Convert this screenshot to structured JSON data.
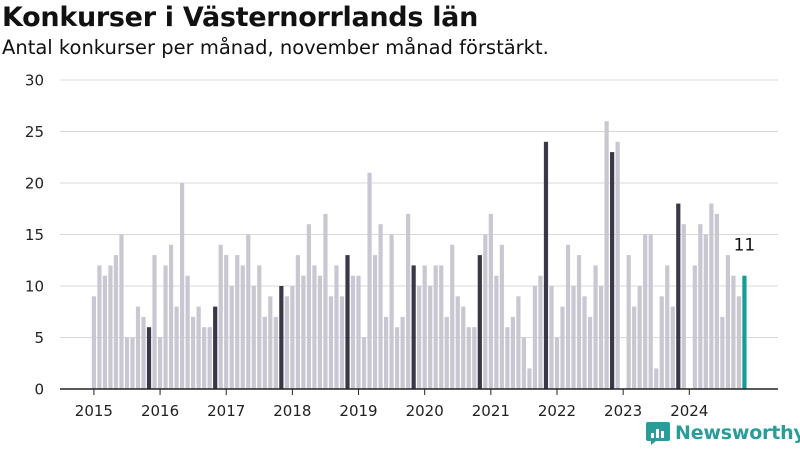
{
  "header": {
    "title": "Konkurser i Västernorrlands län",
    "subtitle": "Antal konkurser per månad, november månad förstärkt."
  },
  "brand": {
    "name": "Newsworthy",
    "color": "#2a9d9a"
  },
  "colors": {
    "bar": "#c8c7d2",
    "highlight": "#3a3848",
    "latest": "#139e96",
    "axis": "#222222",
    "grid": "#d8d8d8"
  },
  "chart_data": {
    "type": "bar",
    "title": "Konkurser i Västernorrlands län",
    "subtitle": "Antal konkurser per månad, november månad förstärkt.",
    "xlabel": "",
    "ylabel": "",
    "ylim": [
      0,
      30
    ],
    "yticks": [
      "0",
      "5",
      "10",
      "15",
      "20",
      "25",
      "30"
    ],
    "xticks": [
      "2015",
      "2016",
      "2017",
      "2018",
      "2019",
      "2020",
      "2021",
      "2022",
      "2023",
      "2024"
    ],
    "grid": true,
    "start": "2015-01",
    "values": [
      9,
      12,
      11,
      12,
      13,
      15,
      5,
      5,
      8,
      7,
      6,
      13,
      5,
      12,
      14,
      8,
      20,
      11,
      7,
      8,
      6,
      6,
      8,
      14,
      13,
      10,
      13,
      12,
      15,
      10,
      12,
      7,
      9,
      7,
      10,
      9,
      10,
      13,
      11,
      16,
      12,
      11,
      17,
      9,
      12,
      9,
      13,
      11,
      11,
      5,
      21,
      13,
      16,
      7,
      15,
      6,
      7,
      17,
      12,
      10,
      12,
      10,
      12,
      12,
      7,
      14,
      9,
      8,
      6,
      6,
      13,
      15,
      17,
      11,
      14,
      6,
      7,
      9,
      5,
      2,
      10,
      11,
      24,
      10,
      5,
      8,
      14,
      10,
      13,
      9,
      7,
      12,
      10,
      26,
      23,
      24,
      0,
      13,
      8,
      10,
      15,
      15,
      2,
      9,
      12,
      8,
      18,
      16,
      0,
      12,
      16,
      15,
      18,
      17,
      7,
      13,
      11,
      9,
      11
    ],
    "highlight_month": "november",
    "latest": {
      "period": "2024-11",
      "value": 11,
      "label": "11"
    }
  }
}
